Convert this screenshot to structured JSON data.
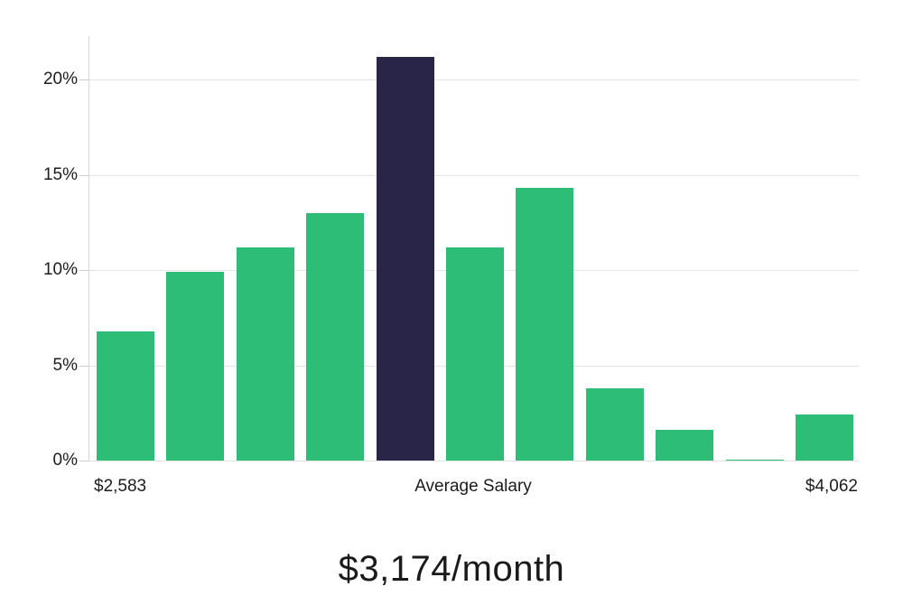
{
  "chart_data": {
    "type": "bar",
    "title": "$3,174/month",
    "subtitle": "",
    "ylabel": "",
    "xlabel": "",
    "grid": true,
    "ylim": [
      0,
      22.3
    ],
    "y_ticks": [
      {
        "value": 0,
        "label": "0%"
      },
      {
        "value": 5,
        "label": "5%"
      },
      {
        "value": 10,
        "label": "10%"
      },
      {
        "value": 15,
        "label": "15%"
      },
      {
        "value": 20,
        "label": "20%"
      }
    ],
    "x_axis_labels": {
      "left": "$2,583",
      "center": "Average Salary",
      "right": "$4,062"
    },
    "values": [
      6.8,
      9.9,
      11.2,
      13.0,
      21.2,
      11.2,
      14.3,
      3.8,
      1.6,
      0.05,
      2.4
    ],
    "highlight_index": 4,
    "colors": {
      "bar": "#2dbd77",
      "highlight_bar": "#282549",
      "gridline": "#e4e4e4",
      "axis": "#d6d6d6",
      "text": "#1c1c1c"
    }
  }
}
